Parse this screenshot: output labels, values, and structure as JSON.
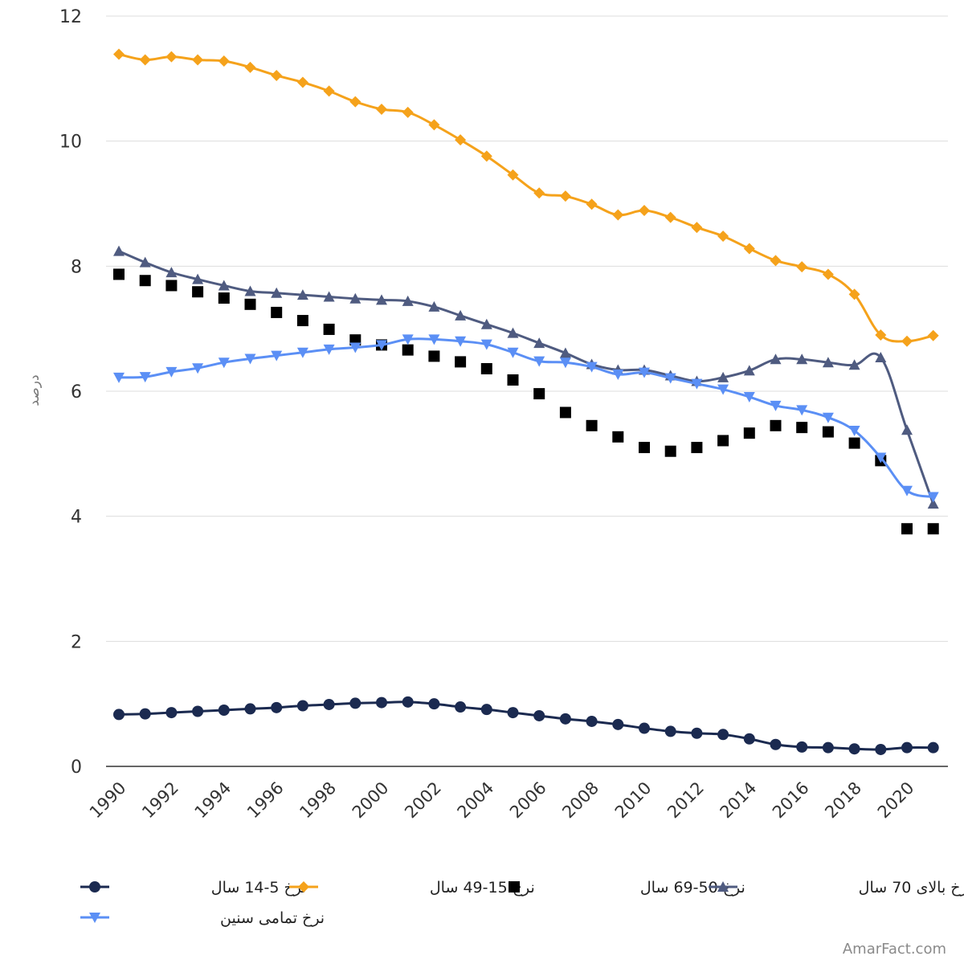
{
  "chart_data": {
    "type": "line",
    "ylabel": "درصد",
    "xlabel": "",
    "ylim": [
      0,
      12
    ],
    "yticks": [
      "0",
      "2",
      "4",
      "6",
      "8",
      "10",
      "12"
    ],
    "x": [
      1990,
      1991,
      1992,
      1993,
      1994,
      1995,
      1996,
      1997,
      1998,
      1999,
      2000,
      2001,
      2002,
      2003,
      2004,
      2005,
      2006,
      2007,
      2008,
      2009,
      2010,
      2011,
      2012,
      2013,
      2014,
      2015,
      2016,
      2017,
      2018,
      2019,
      2020,
      2021
    ],
    "xtick_labels": [
      "1990",
      "1992",
      "1994",
      "1996",
      "1998",
      "2000",
      "2002",
      "2004",
      "2006",
      "2008",
      "2010",
      "2012",
      "2014",
      "2016",
      "2018",
      "2020"
    ],
    "grid": true,
    "legend_position": "bottom",
    "series": [
      {
        "name": "نرخ 5-14 سال",
        "color": "#1b2a50",
        "marker": "circle",
        "line": true,
        "values": [
          0.83,
          0.84,
          0.86,
          0.88,
          0.9,
          0.92,
          0.94,
          0.97,
          0.99,
          1.01,
          1.02,
          1.03,
          1.0,
          0.95,
          0.91,
          0.86,
          0.81,
          0.76,
          0.72,
          0.67,
          0.61,
          0.56,
          0.53,
          0.51,
          0.44,
          0.35,
          0.31,
          0.3,
          0.28,
          0.27,
          0.3,
          0.3
        ]
      },
      {
        "name": "نرخ 15-49 سال",
        "color": "#f5a21b",
        "marker": "diamond",
        "line": true,
        "values": [
          11.39,
          11.3,
          11.35,
          11.3,
          11.28,
          11.18,
          11.05,
          10.94,
          10.8,
          10.63,
          10.51,
          10.46,
          10.26,
          10.02,
          9.76,
          9.46,
          9.17,
          9.12,
          8.99,
          8.82,
          8.89,
          8.78,
          8.62,
          8.48,
          8.28,
          8.09,
          7.99,
          7.87,
          7.55,
          6.9,
          6.8,
          6.89
        ]
      },
      {
        "name": "نرخ 50-69 سال",
        "color": "#000000",
        "marker": "square",
        "line": false,
        "values": [
          7.87,
          7.77,
          7.69,
          7.59,
          7.49,
          7.39,
          7.26,
          7.13,
          6.99,
          6.82,
          6.74,
          6.66,
          6.56,
          6.47,
          6.36,
          6.18,
          5.96,
          5.66,
          5.45,
          5.27,
          5.1,
          5.04,
          5.1,
          5.21,
          5.33,
          5.45,
          5.42,
          5.35,
          5.17,
          4.89,
          3.8,
          3.8
        ]
      },
      {
        "name": "نرخ بالای 70 سال",
        "color": "#4f5b80",
        "marker": "triangle-up",
        "line": true,
        "values": [
          8.24,
          8.06,
          7.9,
          7.79,
          7.69,
          7.6,
          7.57,
          7.54,
          7.51,
          7.48,
          7.46,
          7.44,
          7.35,
          7.21,
          7.07,
          6.93,
          6.77,
          6.61,
          6.43,
          6.34,
          6.34,
          6.25,
          6.16,
          6.22,
          6.33,
          6.51,
          6.51,
          6.46,
          6.42,
          6.54,
          5.38,
          4.2
        ]
      },
      {
        "name": "نرخ تمامی سنین",
        "color": "#5b8ff5",
        "marker": "triangle-down",
        "line": true,
        "values": [
          6.22,
          6.23,
          6.31,
          6.37,
          6.46,
          6.52,
          6.57,
          6.62,
          6.67,
          6.7,
          6.74,
          6.83,
          6.83,
          6.8,
          6.75,
          6.62,
          6.48,
          6.46,
          6.39,
          6.27,
          6.3,
          6.21,
          6.12,
          6.03,
          5.91,
          5.77,
          5.7,
          5.58,
          5.37,
          4.94,
          4.41,
          4.31
        ]
      }
    ]
  },
  "watermark": "AmarFact.com"
}
